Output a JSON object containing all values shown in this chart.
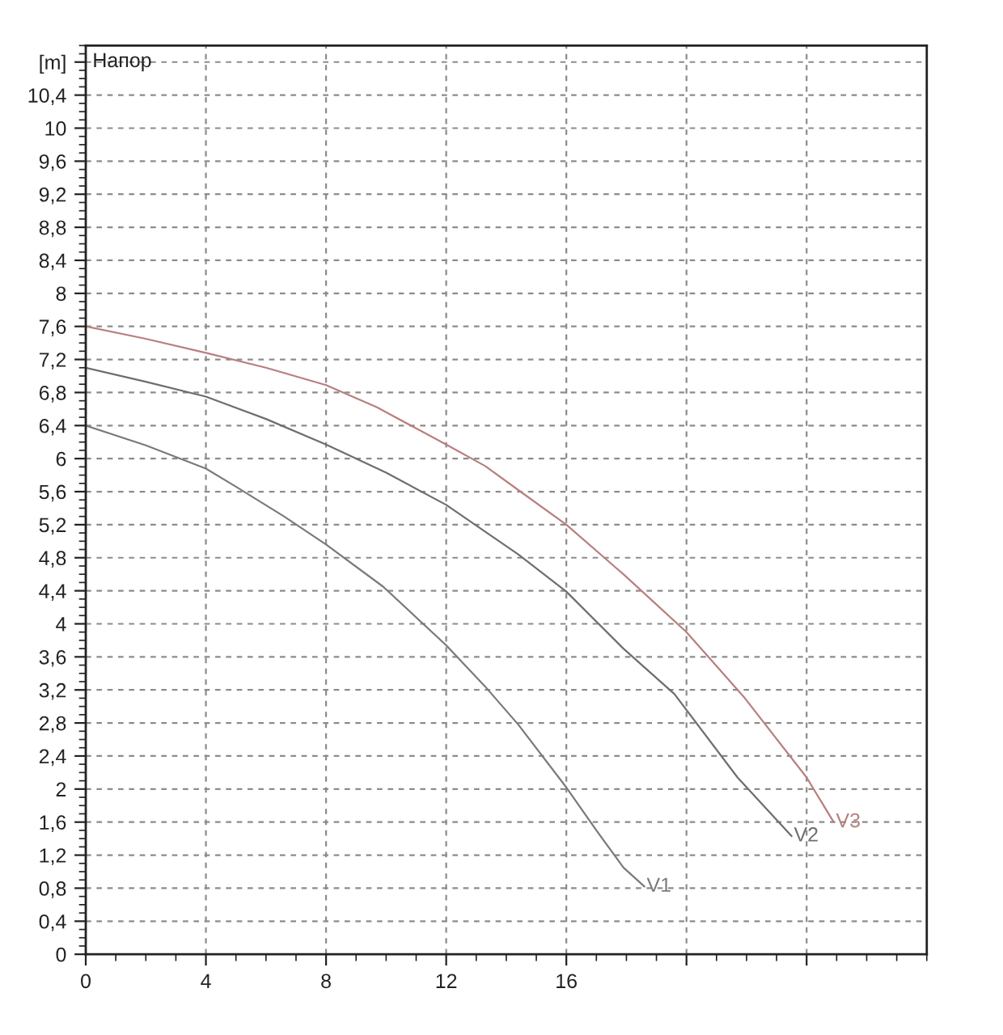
{
  "chart_data": {
    "type": "line",
    "title": "Напор",
    "xlim": [
      0,
      28
    ],
    "xticks": [
      0,
      4,
      8,
      12,
      16,
      {
        "value": 20,
        "label": null
      },
      {
        "value": 24,
        "label": null
      }
    ],
    "ylim": [
      0,
      11
    ],
    "yticks": [
      0,
      {
        "value": 0.4,
        "label": "0,4"
      },
      {
        "value": 0.8,
        "label": "0,8"
      },
      {
        "value": 1.2,
        "label": "1,2"
      },
      {
        "value": 1.6,
        "label": "1,6"
      },
      2,
      {
        "value": 2.4,
        "label": "2,4"
      },
      {
        "value": 2.8,
        "label": "2,8"
      },
      {
        "value": 3.2,
        "label": "3,2"
      },
      {
        "value": 3.6,
        "label": "3,6"
      },
      4,
      {
        "value": 4.4,
        "label": "4,4"
      },
      {
        "value": 4.8,
        "label": "4,8"
      },
      {
        "value": 5.2,
        "label": "5,2"
      },
      {
        "value": 5.6,
        "label": "5,6"
      },
      6,
      {
        "value": 6.4,
        "label": "6,4"
      },
      {
        "value": 6.8,
        "label": "6,8"
      },
      {
        "value": 7.2,
        "label": "7,2"
      },
      {
        "value": 7.6,
        "label": "7,6"
      },
      8,
      {
        "value": 8.4,
        "label": "8,4"
      },
      {
        "value": 8.8,
        "label": "8,8"
      },
      {
        "value": 9.2,
        "label": "9,2"
      },
      {
        "value": 9.6,
        "label": "9,6"
      },
      10,
      {
        "value": 10.4,
        "label": "10,4"
      },
      {
        "value": 10.8,
        "label": "[m]"
      }
    ],
    "grid": true,
    "series": [
      {
        "name": "V1",
        "color": "#7a7a7a",
        "x": [
          0,
          2,
          4,
          5,
          6.6,
          8,
          9.9,
          12,
          13.3,
          14.4,
          16,
          17,
          17.9,
          18.6
        ],
        "values": [
          6.4,
          6.16,
          5.88,
          5.66,
          5.3,
          4.96,
          4.45,
          3.74,
          3.24,
          2.78,
          2.02,
          1.5,
          1.05,
          0.82
        ]
      },
      {
        "name": "V2",
        "color": "#6e6e6e",
        "x": [
          0,
          2,
          4,
          6,
          8,
          10,
          12,
          14.4,
          16,
          17.9,
          19.6,
          21.7,
          23.5
        ],
        "values": [
          7.1,
          6.93,
          6.75,
          6.48,
          6.17,
          5.83,
          5.44,
          4.84,
          4.39,
          3.7,
          3.15,
          2.14,
          1.43
        ]
      },
      {
        "name": "V3",
        "color": "#b87f7f",
        "x": [
          0,
          2,
          4,
          6,
          8,
          9.7,
          12,
          13.3,
          14.4,
          16,
          17.9,
          20,
          21.9,
          24,
          24.9
        ],
        "values": [
          7.6,
          7.45,
          7.28,
          7.1,
          6.89,
          6.62,
          6.17,
          5.91,
          5.62,
          5.2,
          4.6,
          3.9,
          3.12,
          2.14,
          1.6
        ]
      }
    ]
  }
}
